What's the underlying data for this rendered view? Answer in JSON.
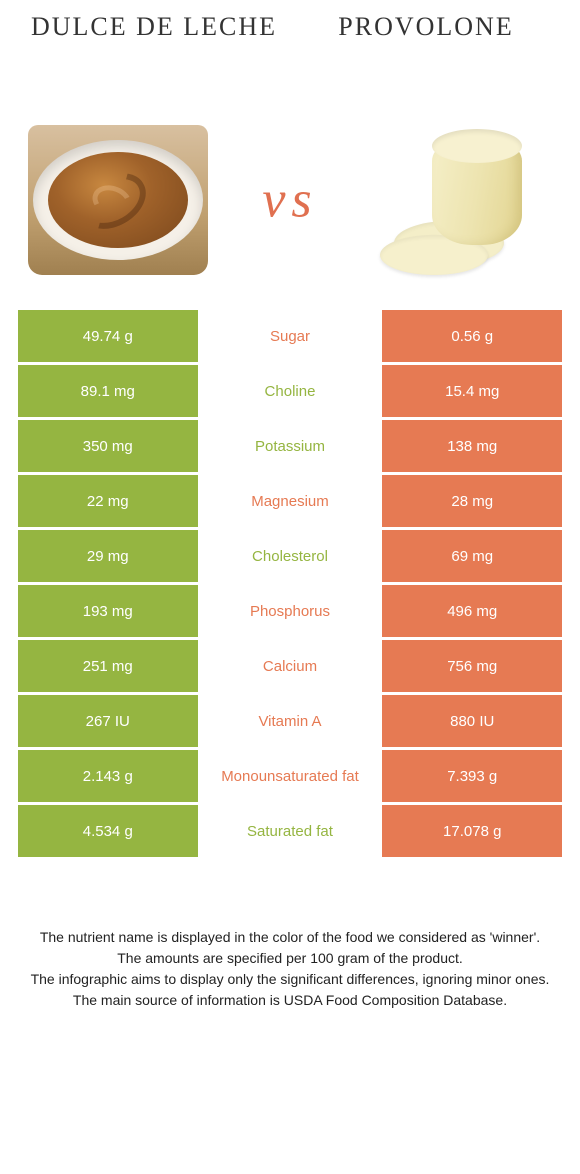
{
  "colors": {
    "green": "#95b541",
    "orange": "#e67a53",
    "vs": "#e07050",
    "title": "#333333"
  },
  "header": {
    "left_title": "Dulce de leche",
    "right_title": "Provolone",
    "vs": "vs"
  },
  "rows": [
    {
      "nutrient": "Sugar",
      "left": "49.74 g",
      "right": "0.56 g",
      "winner": "right"
    },
    {
      "nutrient": "Choline",
      "left": "89.1 mg",
      "right": "15.4 mg",
      "winner": "left"
    },
    {
      "nutrient": "Potassium",
      "left": "350 mg",
      "right": "138 mg",
      "winner": "left"
    },
    {
      "nutrient": "Magnesium",
      "left": "22 mg",
      "right": "28 mg",
      "winner": "right"
    },
    {
      "nutrient": "Cholesterol",
      "left": "29 mg",
      "right": "69 mg",
      "winner": "left"
    },
    {
      "nutrient": "Phosphorus",
      "left": "193 mg",
      "right": "496 mg",
      "winner": "right"
    },
    {
      "nutrient": "Calcium",
      "left": "251 mg",
      "right": "756 mg",
      "winner": "right"
    },
    {
      "nutrient": "Vitamin A",
      "left": "267 IU",
      "right": "880 IU",
      "winner": "right"
    },
    {
      "nutrient": "Monounsaturated fat",
      "left": "2.143 g",
      "right": "7.393 g",
      "winner": "right"
    },
    {
      "nutrient": "Saturated fat",
      "left": "4.534 g",
      "right": "17.078 g",
      "winner": "left"
    }
  ],
  "footer": {
    "line1": "The nutrient name is displayed in the color of the food we considered as 'winner'.",
    "line2": "The amounts are specified per 100 gram of the product.",
    "line3": "The infographic aims to display only the significant differences, ignoring minor ones.",
    "line4": "The main source of information is USDA Food Composition Database."
  }
}
